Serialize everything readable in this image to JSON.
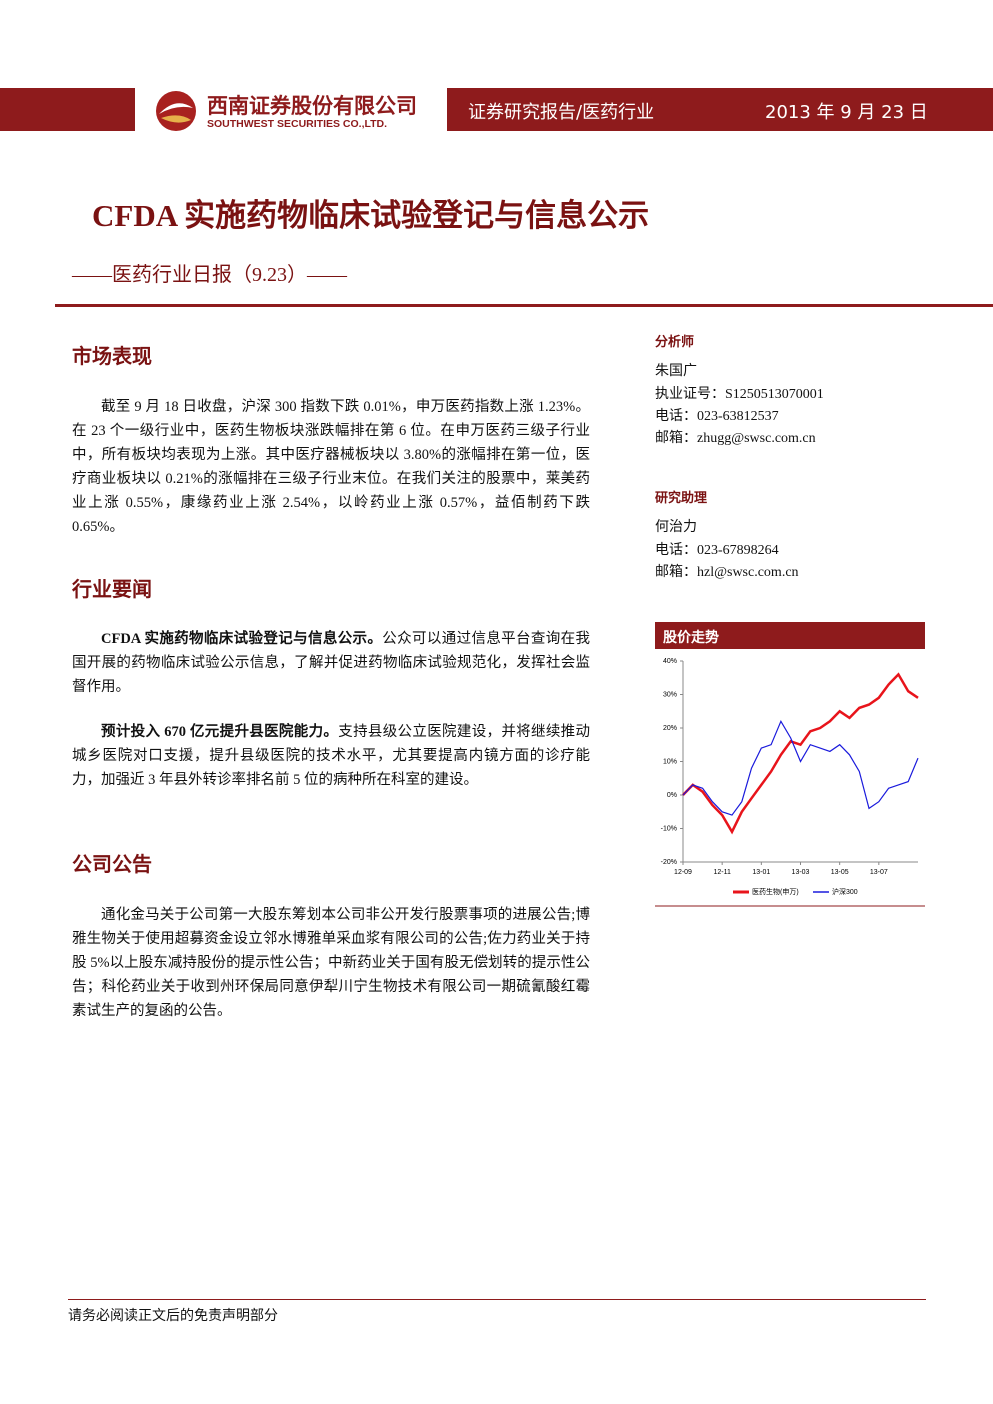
{
  "header": {
    "company_cn": "西南证券股份有限公司",
    "company_en": "SOUTHWEST SECURITIES CO.,LTD.",
    "report_type": "证券研究报告/医药行业",
    "date": "2013 年 9 月 23 日"
  },
  "title": "CFDA 实施药物临床试验登记与信息公示",
  "subtitle": "——医药行业日报（9.23）——",
  "sections": [
    {
      "heading": "市场表现",
      "paragraphs": [
        {
          "text": "截至 9 月 18 日收盘，沪深 300 指数下跌 0.01%，申万医药指数上涨 1.23%。在 23 个一级行业中，医药生物板块涨跌幅排在第 6 位。在申万医药三级子行业中，所有板块均表现为上涨。其中医疗器械板块以 3.80%的涨幅排在第一位，医疗商业板块以 0.21%的涨幅排在三级子行业末位。在我们关注的股票中，莱美药业上涨 0.55%，康缘药业上涨 2.54%，以岭药业上涨 0.57%，益佰制药下跌 0.65%。"
        }
      ]
    },
    {
      "heading": "行业要闻",
      "paragraphs": [
        {
          "bold": "CFDA 实施药物临床试验登记与信息公示。",
          "text": "公众可以通过信息平台查询在我国开展的药物临床试验公示信息，了解并促进药物临床试验规范化，发挥社会监督作用。"
        },
        {
          "bold": "预计投入 670 亿元提升县医院能力。",
          "text": "支持县级公立医院建设，并将继续推动城乡医院对口支援，提升县级医院的技术水平，尤其要提高内镜方面的诊疗能力，加强近 3 年县外转诊率排名前 5 位的病种所在科室的建设。"
        }
      ]
    },
    {
      "heading": "公司公告",
      "paragraphs": [
        {
          "text": "通化金马关于公司第一大股东筹划本公司非公开发行股票事项的进展公告;博雅生物关于使用超募资金设立邻水博雅单采血浆有限公司的公告;佐力药业关于持股 5%以上股东减持股份的提示性公告；中新药业关于国有股无偿划转的提示性公告；科伦药业关于收到州环保局同意伊犁川宁生物技术有限公司一期硫氰酸红霉素试生产的复函的公告。"
        }
      ]
    }
  ],
  "sidebar": {
    "analyst": {
      "heading": "分析师",
      "name": "朱国广",
      "lines": [
        "执业证号：S1250513070001",
        "电话：023-63812537",
        "邮箱：zhugg@swsc.com.cn"
      ]
    },
    "assistant": {
      "heading": "研究助理",
      "name": "何治力",
      "lines": [
        "电话：023-67898264",
        "邮箱：hzl@swsc.com.cn"
      ]
    }
  },
  "chart_data": {
    "type": "line",
    "title": "股价走势",
    "categories": [
      "12-09",
      null,
      null,
      null,
      "12-11",
      null,
      null,
      null,
      "13-01",
      null,
      null,
      null,
      "13-03",
      null,
      null,
      null,
      "13-05",
      null,
      null,
      null,
      "13-07",
      null,
      null,
      null,
      null
    ],
    "series": [
      {
        "name": "医药生物(申万)",
        "color": "#e8141b",
        "values": [
          0,
          3,
          1,
          -3,
          -6,
          -11,
          -5,
          -1,
          3,
          7,
          12,
          16,
          15,
          19,
          20,
          22,
          25,
          23,
          26,
          27,
          29,
          33,
          36,
          31,
          29
        ]
      },
      {
        "name": "沪深300",
        "color": "#1a1adc",
        "values": [
          0,
          3,
          2,
          -2,
          -5,
          -6,
          -2,
          8,
          14,
          15,
          22,
          17,
          10,
          15,
          14,
          13,
          15,
          12,
          7,
          -4,
          -2,
          2,
          3,
          4,
          11
        ]
      }
    ],
    "ylim": [
      -20,
      40
    ],
    "yticks": [
      {
        "value": 40,
        "label": "40%"
      },
      {
        "value": 30,
        "label": "30%"
      },
      {
        "value": 20,
        "label": "20%"
      },
      {
        "value": 10,
        "label": "10%"
      },
      {
        "value": 0,
        "label": "0%"
      },
      {
        "value": -10,
        "label": "-10%"
      },
      {
        "value": -20,
        "label": "-20%"
      }
    ]
  },
  "footer": "请务必阅读正文后的免责声明部分"
}
